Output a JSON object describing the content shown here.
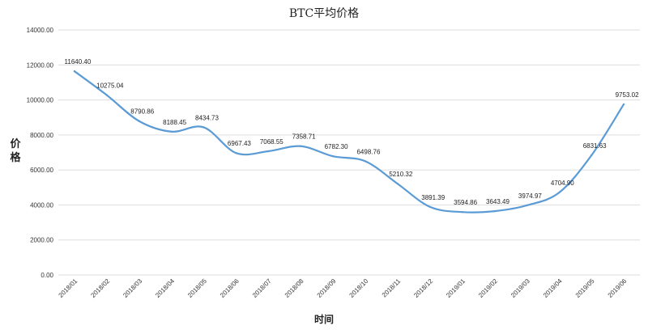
{
  "chart_data": {
    "type": "line",
    "title": "BTC平均价格",
    "xlabel": "时间",
    "ylabel": "价格",
    "categories": [
      "2018/01",
      "2018/02",
      "2018/03",
      "2018/04",
      "2018/05",
      "2018/06",
      "2018/07",
      "2018/08",
      "2018/09",
      "2018/10",
      "2018/11",
      "2018/12",
      "2019/01",
      "2019/02",
      "2019/03",
      "2019/04",
      "2019/05",
      "2019/06"
    ],
    "values": [
      11640.4,
      10275.04,
      8790.86,
      8188.45,
      8434.73,
      6967.43,
      7068.55,
      7358.71,
      6782.3,
      6498.76,
      5210.32,
      3891.39,
      3594.86,
      3643.49,
      3974.97,
      4704.9,
      6831.63,
      9753.02
    ],
    "value_labels": [
      "11640.40",
      "10275.04",
      "8790.86",
      "8188.45",
      "8434.73",
      "6967.43",
      "7068.55",
      "7358.71",
      "6782.30",
      "6498.76",
      "5210.32",
      "3891.39",
      "3594.86",
      "3643.49",
      "3974.97",
      "4704.90",
      "6831.63",
      "9753.02"
    ],
    "ylim": [
      0,
      14000
    ],
    "yticks": [
      "0.00",
      "2000.00",
      "4000.00",
      "6000.00",
      "8000.00",
      "10000.00",
      "12000.00",
      "14000.00"
    ],
    "line_color": "#5b9bd5",
    "grid": true,
    "grid_color": "#dddddd",
    "legend": false
  }
}
